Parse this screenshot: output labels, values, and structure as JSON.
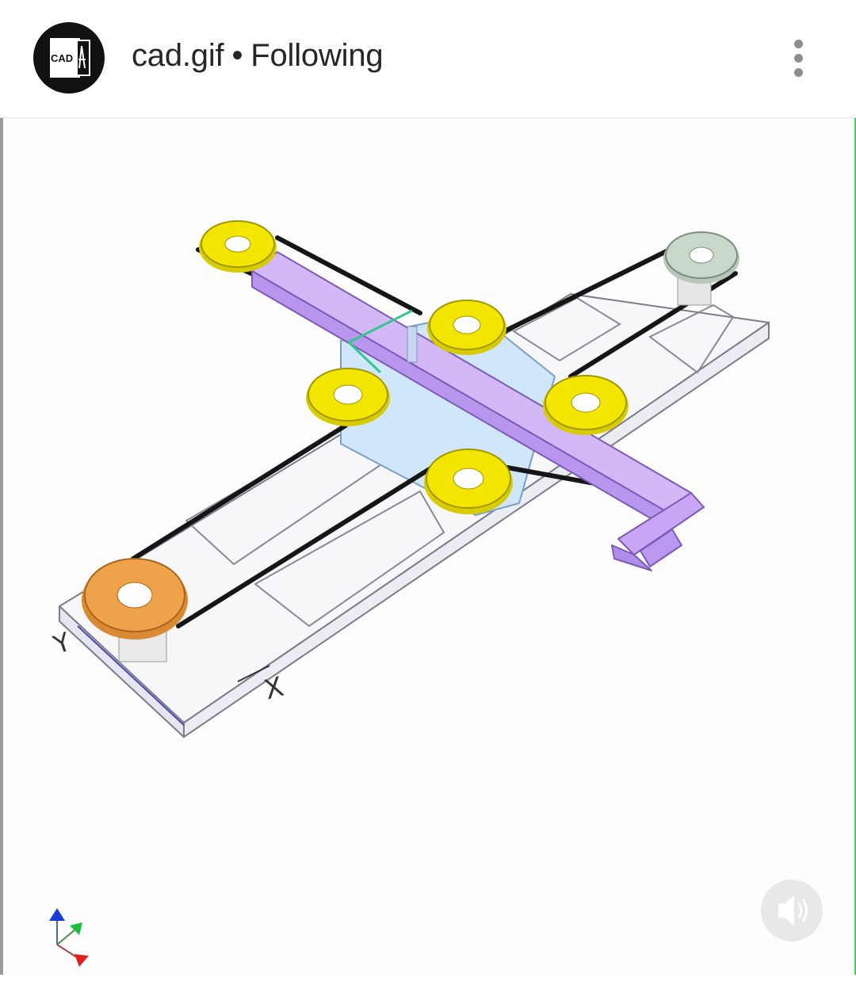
{
  "post": {
    "username": "cad.gif",
    "separator": "•",
    "follow_status": "Following",
    "avatar_text": "CAD",
    "more_icon": "more-vertical-icon"
  },
  "media": {
    "type": "animated-gif",
    "axis_labels": {
      "x": "X",
      "y": "Y"
    },
    "audio_icon": "speaker-muted-icon"
  },
  "colors": {
    "header_text": "#262626",
    "menu_dots": "#8e8e8e",
    "pulley_yellow": "#f2e600",
    "pulley_orange": "#f0a24a",
    "pulley_grey": "#c9d8c9",
    "carriage_purple": "#c9a8f5",
    "plate_blue": "#cfe6fb"
  }
}
